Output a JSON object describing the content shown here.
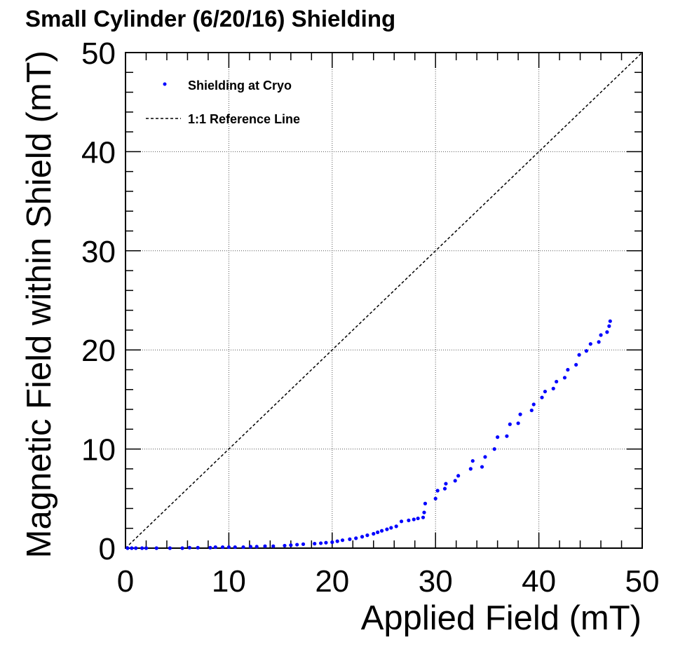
{
  "chart_data": {
    "type": "scatter",
    "title": "Small Cylinder (6/20/16) Shielding",
    "xlabel": "Applied Field (mT)",
    "ylabel": "Magnetic Field within Shield (mT)",
    "xlim": [
      0,
      50
    ],
    "ylim": [
      0,
      50
    ],
    "xticks": [
      "0",
      "10",
      "20",
      "30",
      "40",
      "50"
    ],
    "yticks": [
      "0",
      "10",
      "20",
      "30",
      "40",
      "50"
    ],
    "grid": true,
    "legend_position": "top-left",
    "series": [
      {
        "name": "Shielding at Cryo",
        "kind": "points",
        "color": "#0000ff",
        "x": [
          0.2,
          0.6,
          1.0,
          1.6,
          2.0,
          3.0,
          4.3,
          5.5,
          6.2,
          7.0,
          8.2,
          8.7,
          9.4,
          10.0,
          10.6,
          11.4,
          12.1,
          12.7,
          13.5,
          14.3,
          15.4,
          16.0,
          16.6,
          17.2,
          18.3,
          18.9,
          19.4,
          20.0,
          20.5,
          21.0,
          21.7,
          22.3,
          22.9,
          23.4,
          24.0,
          24.4,
          24.8,
          25.3,
          25.7,
          26.2,
          26.7,
          27.4,
          27.9,
          28.3,
          28.8,
          28.9,
          29.0,
          30.0,
          30.2,
          30.9,
          31.0,
          31.9,
          32.2,
          33.4,
          33.6,
          34.5,
          34.8,
          35.7,
          36.0,
          36.9,
          37.2,
          38.0,
          38.2,
          39.3,
          39.5,
          40.3,
          40.6,
          41.4,
          41.7,
          42.5,
          42.8,
          43.6,
          43.9,
          44.6,
          45.0,
          45.8,
          46.0,
          46.6,
          46.8,
          46.9
        ],
        "y": [
          0.0,
          0.0,
          0.0,
          0.0,
          0.0,
          0.0,
          0.0,
          0.0,
          0.05,
          0.05,
          0.05,
          0.1,
          0.1,
          0.1,
          0.1,
          0.1,
          0.15,
          0.15,
          0.2,
          0.2,
          0.25,
          0.3,
          0.35,
          0.4,
          0.45,
          0.5,
          0.55,
          0.6,
          0.7,
          0.8,
          0.9,
          1.0,
          1.15,
          1.3,
          1.45,
          1.6,
          1.75,
          1.9,
          2.05,
          2.2,
          2.7,
          2.8,
          2.9,
          3.0,
          3.1,
          3.6,
          4.5,
          5.0,
          5.8,
          6.0,
          6.5,
          6.8,
          7.3,
          8.0,
          8.8,
          8.2,
          9.2,
          10.0,
          11.2,
          11.3,
          12.5,
          12.6,
          13.5,
          13.9,
          14.5,
          15.2,
          15.8,
          16.1,
          16.8,
          17.2,
          18.0,
          18.5,
          19.5,
          19.9,
          20.6,
          20.8,
          21.5,
          21.8,
          22.4,
          22.9
        ]
      },
      {
        "name": "1:1 Reference Line",
        "kind": "dashed-line",
        "color": "#000000",
        "x": [
          0,
          50
        ],
        "y": [
          0,
          50
        ]
      }
    ]
  }
}
